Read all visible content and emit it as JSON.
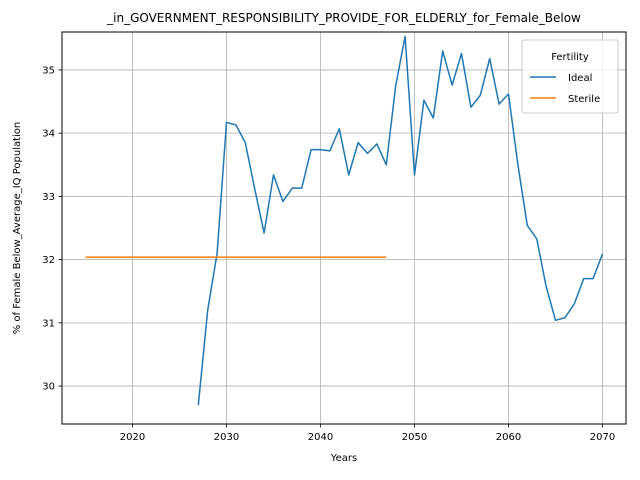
{
  "chart_data": {
    "type": "line",
    "title": "_in_GOVERNMENT_RESPONSIBILITY_PROVIDE_FOR_ELDERLY_for_Female_Below",
    "xlabel": "Years",
    "ylabel": "% of Female Below_Average_IQ Population",
    "xlim": [
      2012.5,
      2072.5
    ],
    "ylim": [
      29.4,
      35.6
    ],
    "xticks": [
      2020,
      2030,
      2040,
      2050,
      2060,
      2070
    ],
    "yticks": [
      30,
      31,
      32,
      33,
      34,
      35
    ],
    "grid": true,
    "legend": {
      "title": "Fertility",
      "placement": "top-right"
    },
    "series": [
      {
        "name": "Ideal",
        "color": "#1f77b4",
        "x": [
          2027,
          2028,
          2029,
          2030,
          2031,
          2032,
          2033,
          2034,
          2035,
          2036,
          2037,
          2038,
          2039,
          2040,
          2041,
          2042,
          2043,
          2044,
          2045,
          2046,
          2047,
          2048,
          2049,
          2050,
          2051,
          2052,
          2053,
          2054,
          2055,
          2056,
          2057,
          2058,
          2059,
          2060,
          2061,
          2062,
          2063,
          2064,
          2065,
          2066,
          2067,
          2068,
          2069,
          2070
        ],
        "y": [
          29.7,
          31.2,
          32.1,
          34.17,
          34.13,
          33.85,
          33.12,
          32.42,
          33.34,
          32.92,
          33.13,
          33.13,
          33.74,
          33.74,
          33.72,
          34.07,
          33.34,
          33.85,
          33.68,
          33.83,
          33.5,
          34.75,
          35.53,
          33.34,
          34.52,
          34.24,
          35.3,
          34.76,
          35.26,
          34.41,
          34.6,
          35.18,
          34.46,
          34.62,
          33.5,
          32.54,
          32.33,
          31.58,
          31.04,
          31.08,
          31.3,
          31.7,
          31.7,
          32.09
        ]
      },
      {
        "name": "Sterile",
        "color": "#ff7f0e",
        "x": [
          2015,
          2047
        ],
        "y": [
          32.04,
          32.04
        ]
      }
    ]
  }
}
